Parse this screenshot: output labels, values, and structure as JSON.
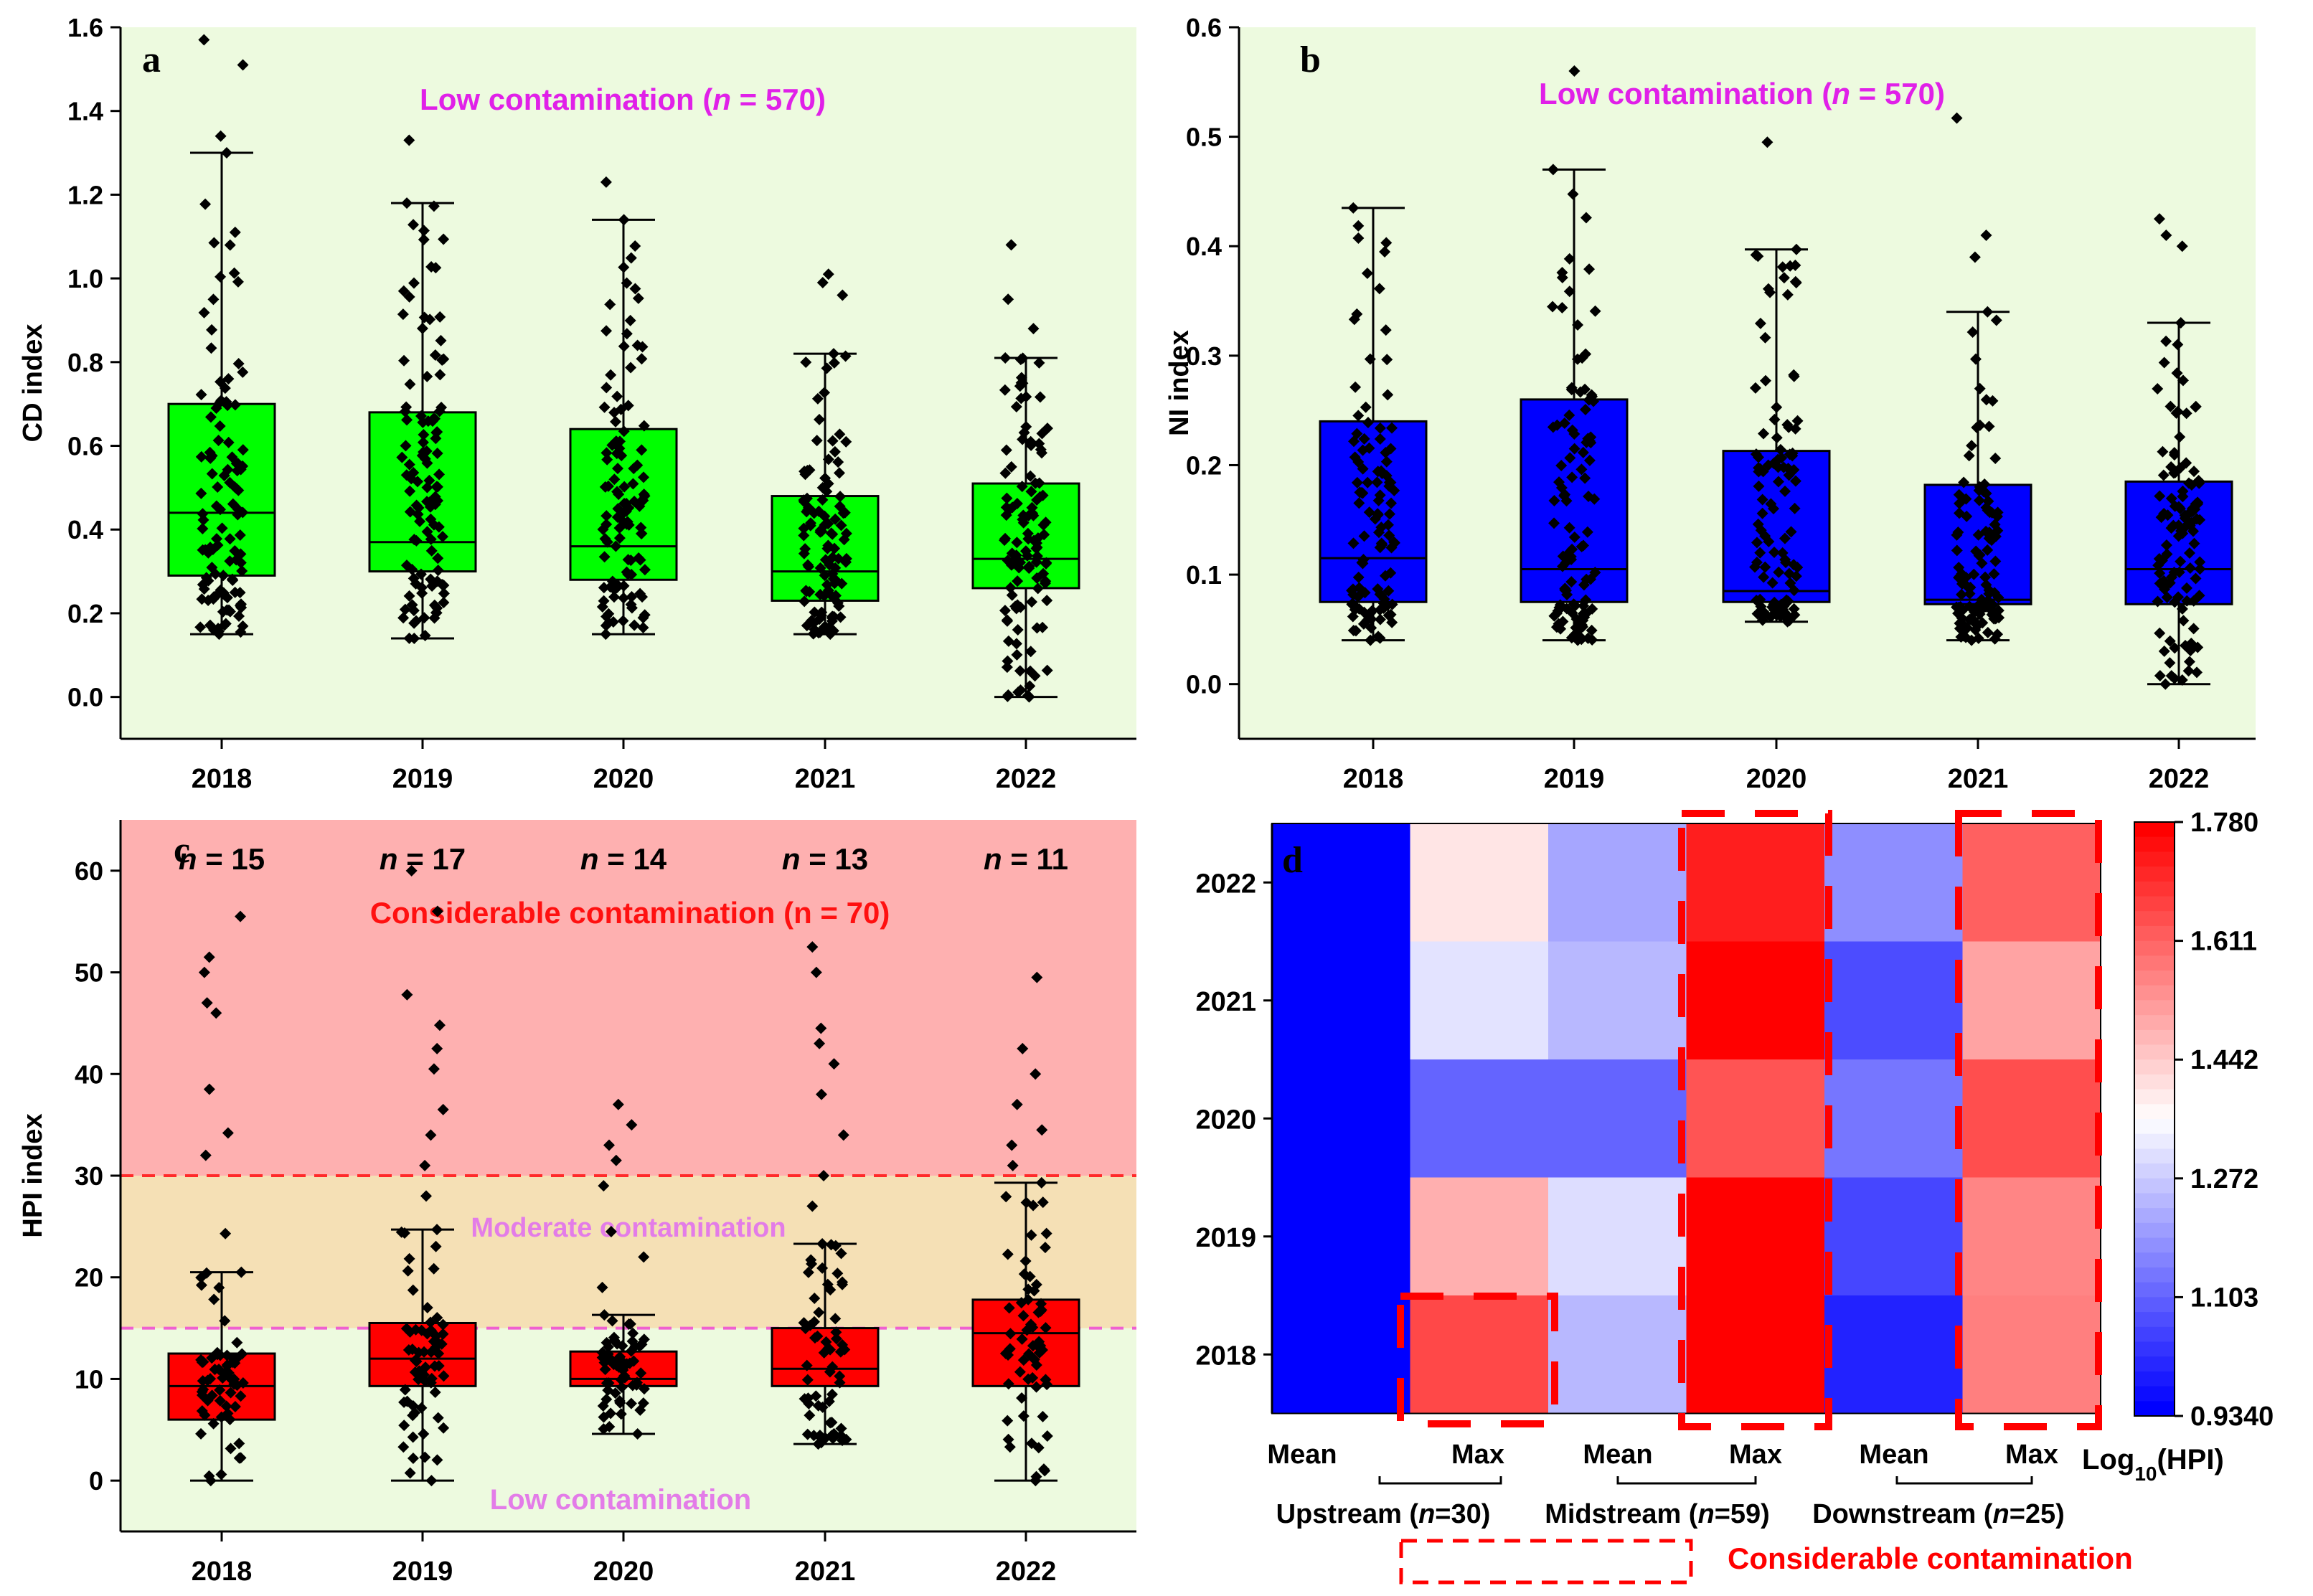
{
  "chart_data": [
    {
      "panel": "a",
      "type": "box",
      "ylabel": "CD index",
      "ylim": [
        -0.1,
        1.6
      ],
      "yticks": [
        "0.0",
        "0.2",
        "0.4",
        "0.6",
        "0.8",
        "1.0",
        "1.2",
        "1.4",
        "1.6"
      ],
      "categories": [
        "2018",
        "2019",
        "2020",
        "2021",
        "2022"
      ],
      "background_color": "#edfadf",
      "box_color": "#00ff00",
      "annotation": {
        "prefix": "Low contamination (",
        "n_symbol": "n",
        "suffix": " = 570)",
        "color": "#e020e8"
      },
      "boxes": [
        {
          "q1": 0.29,
          "median": 0.44,
          "q3": 0.7,
          "whisker_low": 0.15,
          "whisker_high": 1.3,
          "outliers": [
            1.57,
            1.51,
            1.34
          ]
        },
        {
          "q1": 0.3,
          "median": 0.37,
          "q3": 0.68,
          "whisker_low": 0.14,
          "whisker_high": 1.18,
          "outliers": [
            1.33
          ]
        },
        {
          "q1": 0.28,
          "median": 0.36,
          "q3": 0.64,
          "whisker_low": 0.15,
          "whisker_high": 1.14,
          "outliers": [
            1.23
          ]
        },
        {
          "q1": 0.23,
          "median": 0.3,
          "q3": 0.48,
          "whisker_low": 0.15,
          "whisker_high": 0.82,
          "outliers": [
            1.01,
            0.99,
            0.96
          ]
        },
        {
          "q1": 0.26,
          "median": 0.33,
          "q3": 0.51,
          "whisker_low": 0.0,
          "whisker_high": 0.81,
          "outliers": [
            1.08,
            0.95,
            0.88
          ]
        }
      ]
    },
    {
      "panel": "b",
      "type": "box",
      "ylabel": "NI index",
      "ylim": [
        -0.05,
        0.6
      ],
      "yticks": [
        "0.0",
        "0.1",
        "0.2",
        "0.3",
        "0.4",
        "0.5",
        "0.6"
      ],
      "categories": [
        "2018",
        "2019",
        "2020",
        "2021",
        "2022"
      ],
      "background_color": "#edfadf",
      "box_color": "#0000ff",
      "annotation": {
        "prefix": "Low contamination (",
        "n_symbol": "n",
        "suffix": " = 570)",
        "color": "#e020e8"
      },
      "boxes": [
        {
          "q1": 0.075,
          "median": 0.115,
          "q3": 0.24,
          "whisker_low": 0.04,
          "whisker_high": 0.435,
          "outliers": []
        },
        {
          "q1": 0.075,
          "median": 0.105,
          "q3": 0.26,
          "whisker_low": 0.04,
          "whisker_high": 0.47,
          "outliers": [
            0.56
          ]
        },
        {
          "q1": 0.075,
          "median": 0.085,
          "q3": 0.213,
          "whisker_low": 0.057,
          "whisker_high": 0.397,
          "outliers": [
            0.495
          ]
        },
        {
          "q1": 0.073,
          "median": 0.077,
          "q3": 0.182,
          "whisker_low": 0.04,
          "whisker_high": 0.34,
          "outliers": [
            0.517,
            0.41,
            0.39
          ]
        },
        {
          "q1": 0.073,
          "median": 0.105,
          "q3": 0.185,
          "whisker_low": 0.0,
          "whisker_high": 0.33,
          "outliers": [
            0.425,
            0.41,
            0.4
          ]
        }
      ]
    },
    {
      "panel": "c",
      "type": "box",
      "ylabel": "HPI index",
      "ylim": [
        -5,
        65
      ],
      "yticks": [
        "0",
        "10",
        "20",
        "30",
        "40",
        "50",
        "60"
      ],
      "categories": [
        "2018",
        "2019",
        "2020",
        "2021",
        "2022"
      ],
      "box_color": "#ff0000",
      "bands": [
        {
          "from": -5,
          "to": 15,
          "color": "#edfadf",
          "label": "Low contamination",
          "label_color": "#e37ce8"
        },
        {
          "from": 15,
          "to": 30,
          "color": "#f5e0b5",
          "label": "Moderate contamination",
          "label_color": "#e37ce8"
        },
        {
          "from": 30,
          "to": 65,
          "color": "#feb0b0",
          "label": "Considerable contamination (n = 70)",
          "label_color": "#ff1010"
        }
      ],
      "thresholds": [
        {
          "value": 30,
          "color": "#ff2a2a"
        },
        {
          "value": 15,
          "color": "#f060d0"
        }
      ],
      "counts": [
        {
          "symbol": "n",
          "text": " = 15"
        },
        {
          "symbol": "n",
          "text": " = 17"
        },
        {
          "symbol": "n",
          "text": " = 14"
        },
        {
          "symbol": "n",
          "text": " = 13"
        },
        {
          "symbol": "n",
          "text": " = 11"
        }
      ],
      "boxes": [
        {
          "q1": 6.0,
          "median": 9.3,
          "q3": 12.5,
          "whisker_low": 0.0,
          "whisker_high": 20.5,
          "outliers": [
            24.3,
            32.0,
            34.2,
            38.5,
            46.0,
            47.0,
            50.0,
            51.5,
            55.5
          ]
        },
        {
          "q1": 9.3,
          "median": 12.0,
          "q3": 15.5,
          "whisker_low": 0.0,
          "whisker_high": 24.7,
          "outliers": [
            28.0,
            31.0,
            34.0,
            36.5,
            40.5,
            42.5,
            44.8,
            47.8,
            56.0,
            60.0
          ]
        },
        {
          "q1": 9.3,
          "median": 10.0,
          "q3": 12.7,
          "whisker_low": 4.6,
          "whisker_high": 16.3,
          "outliers": [
            19.0,
            22.0,
            24.5,
            29.0,
            31.5,
            33.0,
            35.0,
            37.0
          ]
        },
        {
          "q1": 9.3,
          "median": 11.0,
          "q3": 15.0,
          "whisker_low": 3.6,
          "whisker_high": 23.3,
          "outliers": [
            27.0,
            30.0,
            34.0,
            38.0,
            41.0,
            43.0,
            44.5,
            50.0,
            52.5
          ]
        },
        {
          "q1": 9.3,
          "median": 14.5,
          "q3": 17.8,
          "whisker_low": 0.0,
          "whisker_high": 29.3,
          "outliers": [
            31.0,
            33.0,
            34.5,
            37.0,
            40.0,
            42.5,
            49.5
          ]
        }
      ]
    },
    {
      "panel": "d",
      "type": "heatmap",
      "rows": [
        "2022",
        "2021",
        "2020",
        "2019",
        "2018"
      ],
      "columns": [
        "Mean",
        "Max",
        "Mean",
        "Max",
        "Mean",
        "Max"
      ],
      "groups": [
        {
          "prefix": "Upstream (",
          "n_symbol": "n",
          "suffix": "=30)"
        },
        {
          "prefix": "Midstream (",
          "n_symbol": "n",
          "suffix": "=59)"
        },
        {
          "prefix": "Downstream (",
          "n_symbol": "n",
          "suffix": "=25)"
        }
      ],
      "values": [
        [
          0.934,
          1.4,
          1.21,
          1.73,
          1.17,
          1.62
        ],
        [
          0.934,
          1.31,
          1.24,
          1.78,
          1.06,
          1.51
        ],
        [
          0.934,
          1.1,
          1.1,
          1.64,
          1.13,
          1.65
        ],
        [
          0.934,
          1.49,
          1.3,
          1.78,
          1.05,
          1.56
        ],
        [
          0.934,
          1.66,
          1.24,
          1.78,
          0.99,
          1.57
        ]
      ],
      "colorbar": {
        "min": 0.934,
        "max": 1.78,
        "ticks": [
          "1.780",
          "1.611",
          "1.442",
          "1.272",
          "1.103",
          "0.9340"
        ],
        "label_base": "Log",
        "label_sub": "10",
        "label_tail": "(HPI)"
      },
      "legend": {
        "label": "Considerable contamination",
        "color": "#ff0000"
      }
    }
  ]
}
